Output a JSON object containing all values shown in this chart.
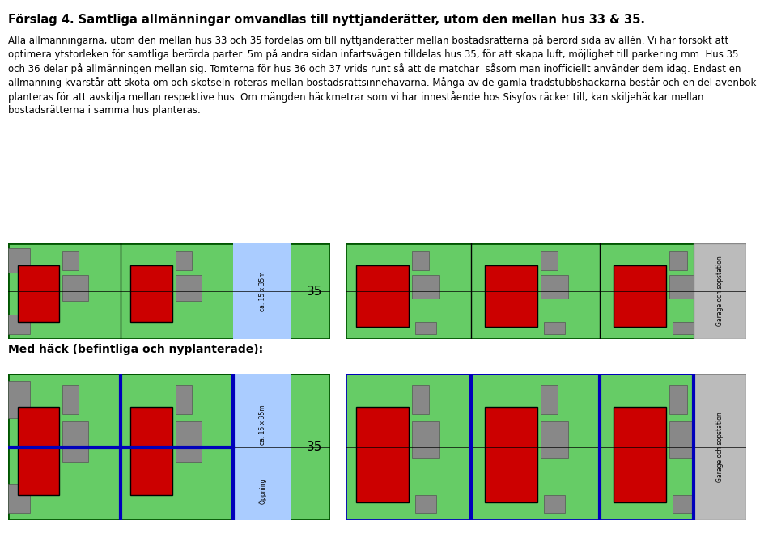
{
  "title": "Förslag 4. Samtliga allmänningar omvandlas till nyttjanderätter, utom den mellan hus 33 & 35.",
  "body_lines": [
    "Alla allmänningarna, utom den mellan hus 33 och 35 fördelas om till nyttjanderätter mellan bostadsrätterna på berörd sida av allén. Vi har försökt att",
    "optimera ytstorleken för samtliga berörda parter. 5m på andra sidan infartsvägen tilldelas hus 35, för att skapa luft, möjlighet till parkering mm. Hus 35",
    "och 36 delar på allmänningen mellan sig. Tomterna för hus 36 och 37 vrids runt så att de matchar  såsom man inofficiellt använder dem idag. Endast en",
    "allmänning kvarstår att sköta om och skötseln roteras mellan bostadsrättsinnehavarna. Många av de gamla trädstubbshäckarna består och en del avenbok",
    "planteras för att avskilja mellan respektive hus. Om mängden häckmetrar som vi har innestående hos Sisyfos räcker till, kan skiljehäckar mellan",
    "bostadsrätterna i samma hus planteras."
  ],
  "label2": "Med häck (befintliga och nyplanterade):",
  "garage_label": "Garage och sopstation",
  "ca_label": "ca. 15 x 35m",
  "oppning_label": "Öppning",
  "num35": "35",
  "green": "#66cc66",
  "border_green": "#005500",
  "red_color": "#cc0000",
  "gray_color": "#888888",
  "light_blue": "#aaccff",
  "blue_line": "#0000bb",
  "garage_bg": "#bbbbbb"
}
